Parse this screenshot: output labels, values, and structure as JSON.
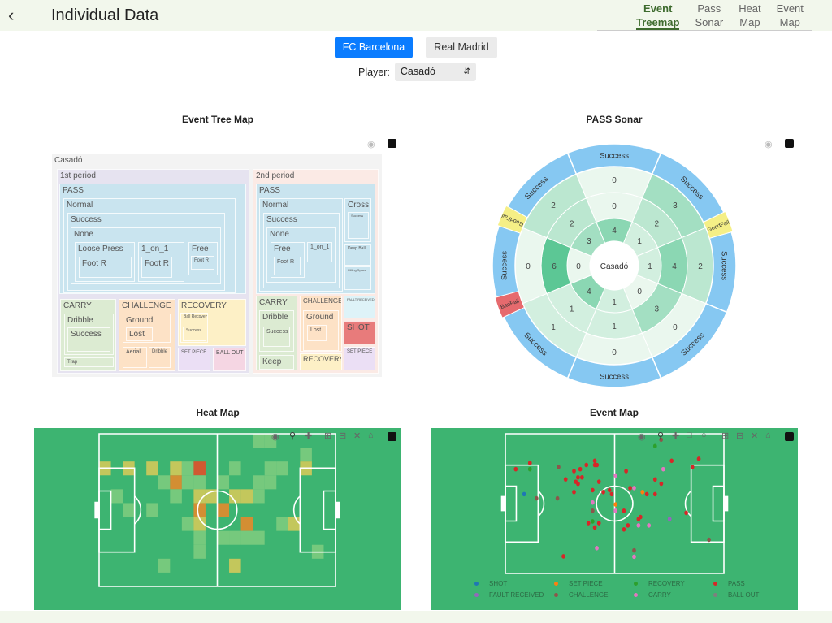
{
  "header": {
    "back_icon": "chevron-left",
    "title": "Individual Data",
    "tabs": [
      {
        "line1": "Event",
        "line2": "Treemap",
        "active": true
      },
      {
        "line1": "Pass",
        "line2": "Sonar"
      },
      {
        "line1": "Heat",
        "line2": "Map"
      },
      {
        "line1": "Event",
        "line2": "Map"
      }
    ]
  },
  "teams": [
    "FC Barcelona",
    "Real Madrid"
  ],
  "player": {
    "label": "Player:",
    "value": "Casadó"
  },
  "treemap": {
    "title": "Event Tree Map",
    "labels": {
      "root": "Casadó",
      "p1": "1st period",
      "p2": "2nd period",
      "pass1": "PASS",
      "normal1": "Normal",
      "success1": "Success",
      "none1": "None",
      "loose": "Loose Press",
      "footr1": "Foot R",
      "oneonone1": "1_on_1",
      "footr2": "Foot R",
      "free1": "Free",
      "footr3": "Foot R",
      "carry1": "CARRY",
      "dribble1": "Dribble",
      "csuccess1": "Success",
      "trap": "Trap",
      "chal1": "CHALLENGE",
      "ground1": "Ground",
      "lost1": "Lost",
      "aerial": "Aerial",
      "dribble1b": "Dribble",
      "rec1": "RECOVERY",
      "ballrec": "Ball Recovery",
      "rsuccess": "Success",
      "setp1": "SET PIECE",
      "ballout": "BALL OUT",
      "pass2": "PASS",
      "normal2": "Normal",
      "success2": "Success",
      "none2": "None",
      "free2": "Free",
      "footr4": "Foot R",
      "oneonone2": "1_on_1",
      "cross": "Cross",
      "crsuccess": "Success",
      "deep": "Deep Ball",
      "killing": "Killing Space",
      "carry2": "CARRY",
      "dribble2": "Dribble",
      "csuccess2": "Success",
      "keep": "Keep",
      "chal2": "CHALLENGE",
      "ground2": "Ground",
      "lost2": "Lost",
      "rec2": "RECOVERY",
      "fault": "FAULT RECEIVED",
      "shot": "SHOT",
      "setp2": "SET PIECE"
    }
  },
  "sonar": {
    "title": "PASS Sonar",
    "center": "Casadó",
    "ring1": [
      4,
      1,
      1,
      0,
      1,
      4,
      0,
      3
    ],
    "ring2": [
      0,
      2,
      4,
      3,
      1,
      1,
      6,
      2
    ],
    "ring3": [
      0,
      3,
      2,
      0,
      0,
      1,
      0,
      2
    ],
    "outer": [
      "Success",
      "Success",
      "Success",
      "Success",
      "Success",
      "Success",
      "Success",
      "Success"
    ],
    "markers": [
      {
        "label": "GoodFail",
        "color": "#f5ef86"
      },
      {
        "label": "GoodFail",
        "color": "#f5ef86"
      },
      {
        "label": "BadFail",
        "color": "#e66a6e"
      }
    ]
  },
  "heatmap": {
    "title": "Heat Map",
    "cells": [
      [
        13,
        0,
        1
      ],
      [
        14,
        0,
        1
      ],
      [
        17,
        1,
        1
      ],
      [
        0,
        2,
        2
      ],
      [
        2,
        2,
        2
      ],
      [
        4,
        2,
        2
      ],
      [
        6,
        2,
        2
      ],
      [
        7,
        2,
        1
      ],
      [
        8,
        2,
        4
      ],
      [
        11,
        2,
        1
      ],
      [
        14,
        2,
        1
      ],
      [
        15,
        2,
        1
      ],
      [
        17,
        2,
        2
      ],
      [
        5,
        3,
        1
      ],
      [
        6,
        3,
        3
      ],
      [
        7,
        3,
        1
      ],
      [
        8,
        3,
        1
      ],
      [
        10,
        3,
        1
      ],
      [
        13,
        3,
        1
      ],
      [
        14,
        3,
        1
      ],
      [
        1,
        4,
        1
      ],
      [
        6,
        4,
        1
      ],
      [
        8,
        4,
        2
      ],
      [
        9,
        4,
        2
      ],
      [
        11,
        4,
        2
      ],
      [
        12,
        4,
        2
      ],
      [
        13,
        4,
        1
      ],
      [
        2,
        5,
        1
      ],
      [
        4,
        5,
        1
      ],
      [
        8,
        5,
        3
      ],
      [
        10,
        5,
        3
      ],
      [
        7,
        6,
        1
      ],
      [
        8,
        6,
        2
      ],
      [
        12,
        6,
        3
      ],
      [
        15,
        6,
        1
      ],
      [
        16,
        6,
        2
      ],
      [
        8,
        7,
        1
      ],
      [
        10,
        7,
        1
      ],
      [
        11,
        7,
        1
      ],
      [
        12,
        7,
        1
      ],
      [
        13,
        7,
        1
      ],
      [
        8,
        8,
        1
      ],
      [
        18,
        8,
        1
      ],
      [
        5,
        9,
        1
      ],
      [
        11,
        9,
        2
      ]
    ]
  },
  "eventmap": {
    "title": "Event Map",
    "legend": [
      {
        "name": "SHOT",
        "color": "#1f77b4"
      },
      {
        "name": "SET PIECE",
        "color": "#ff7f0e"
      },
      {
        "name": "RECOVERY",
        "color": "#2ca02c"
      },
      {
        "name": "PASS",
        "color": "#d62728"
      },
      {
        "name": "FAULT RECEIVED",
        "color": "#9467bd"
      },
      {
        "name": "CHALLENGE",
        "color": "#8c564b"
      },
      {
        "name": "CARRY",
        "color": "#e377c2"
      },
      {
        "name": "BALL OUT",
        "color": "#7f7f7f"
      }
    ],
    "events": [
      [
        13.5,
        16.8,
        "PASS"
      ],
      [
        5.7,
        20.3,
        "PASS"
      ],
      [
        13.5,
        20.3,
        "RECOVERY"
      ],
      [
        29.2,
        19.1,
        "CHALLENGE"
      ],
      [
        10.3,
        34.6,
        "SHOT"
      ],
      [
        17.1,
        37,
        "CHALLENGE"
      ],
      [
        28.6,
        37,
        "CHALLENGE"
      ],
      [
        44.5,
        17.9,
        "PASS"
      ],
      [
        49.1,
        15.5,
        "PASS"
      ],
      [
        49.1,
        17.9,
        "PASS"
      ],
      [
        50.3,
        17.9,
        "PASS"
      ],
      [
        37.7,
        21.4,
        "PASS"
      ],
      [
        41.1,
        20.3,
        "PASS"
      ],
      [
        39.9,
        25,
        "PASS"
      ],
      [
        42.1,
        25,
        "PASS"
      ],
      [
        33.1,
        26.1,
        "PASS"
      ],
      [
        38.7,
        27.5,
        "PASS"
      ],
      [
        39.9,
        28.7,
        "PASS"
      ],
      [
        51.4,
        27.5,
        "PASS"
      ],
      [
        37.7,
        33.4,
        "PASS"
      ],
      [
        47.9,
        32.3,
        "PASS"
      ],
      [
        53.8,
        33.4,
        "PASS"
      ],
      [
        57.2,
        32.3,
        "PASS"
      ],
      [
        58.4,
        34.6,
        "PASS"
      ],
      [
        60.5,
        23.9,
        "CARRY"
      ],
      [
        66.3,
        21.4,
        "PASS"
      ],
      [
        47.9,
        39.4,
        "CARRY"
      ],
      [
        47.9,
        44.1,
        "CHALLENGE"
      ],
      [
        60.5,
        40.5,
        "SET PIECE"
      ],
      [
        60.5,
        44.1,
        "CARRY"
      ],
      [
        65.1,
        44.1,
        "PASS"
      ],
      [
        68.5,
        31.1,
        "PASS"
      ],
      [
        70.7,
        31.1,
        "CARRY"
      ],
      [
        75.3,
        33.4,
        "SET PIECE"
      ],
      [
        77.7,
        34.6,
        "PASS"
      ],
      [
        82.2,
        34.6,
        "PASS"
      ],
      [
        82.2,
        26.2,
        "PASS"
      ],
      [
        85.6,
        28.6,
        "PASS"
      ],
      [
        91.3,
        15.5,
        "PASS"
      ],
      [
        86.7,
        20.3,
        "CARRY"
      ],
      [
        85.5,
        3.4,
        "CHALLENGE"
      ],
      [
        82.2,
        7.1,
        "RECOVERY"
      ],
      [
        106.2,
        14.4,
        "PASS"
      ],
      [
        102.7,
        19.1,
        "PASS"
      ],
      [
        47.9,
        50.2,
        "RECOVERY"
      ],
      [
        45.6,
        51.2,
        "PASS"
      ],
      [
        51.4,
        51.2,
        "PASS"
      ],
      [
        49.1,
        53.7,
        "PASS"
      ],
      [
        65.1,
        54.8,
        "PASS"
      ],
      [
        67.3,
        52.5,
        "PASS"
      ],
      [
        73.1,
        48.9,
        "PASS"
      ],
      [
        74.2,
        47.7,
        "PASS"
      ],
      [
        73.1,
        52.5,
        "CARRY"
      ],
      [
        78.8,
        52.5,
        "CARRY"
      ],
      [
        90.2,
        48.9,
        "FAULT RECEIVED"
      ],
      [
        99.3,
        45.3,
        "PASS"
      ],
      [
        111.8,
        60.7,
        "CHALLENGE"
      ],
      [
        50.2,
        65.5,
        "CARRY"
      ],
      [
        70.7,
        66.8,
        "CHALLENGE"
      ],
      [
        70.7,
        70.4,
        "CARRY"
      ],
      [
        31.9,
        70.2,
        "PASS"
      ]
    ]
  }
}
